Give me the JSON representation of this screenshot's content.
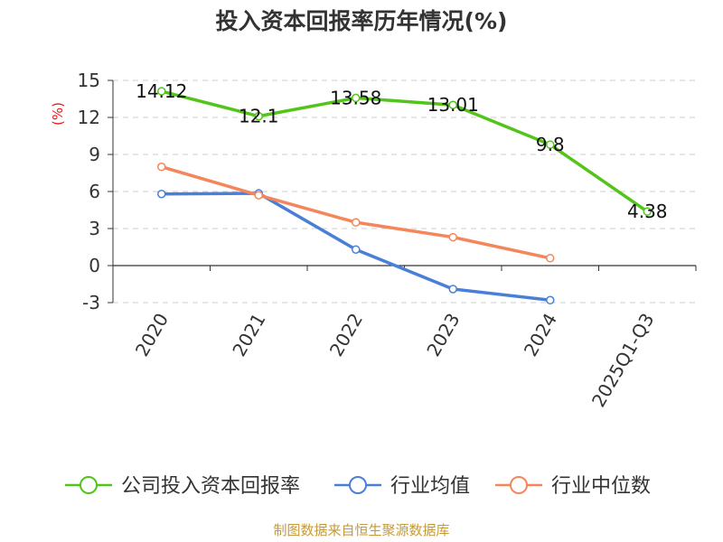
{
  "chart_data": {
    "type": "line",
    "title": "投入资本回报率历年情况(%)",
    "ylabel": "(%)",
    "xlabel": "",
    "categories": [
      "2020",
      "2021",
      "2022",
      "2023",
      "2024",
      "2025Q1-Q3"
    ],
    "ylim": [
      -3,
      15
    ],
    "yticks": [
      15,
      12,
      9,
      6,
      3,
      0,
      -3
    ],
    "grid": true,
    "legend_position": "bottom",
    "series": [
      {
        "name": "公司投入资本回报率",
        "color": "#52c41a",
        "values": [
          14.12,
          12.1,
          13.58,
          13.01,
          9.8,
          4.38
        ],
        "labels": [
          "14.12",
          "12.1",
          "13.58",
          "13.01",
          "9.8",
          "4.38"
        ]
      },
      {
        "name": "行业均值",
        "color": "#4a7fd8",
        "values": [
          5.8,
          5.85,
          1.3,
          -1.9,
          -2.8,
          null
        ]
      },
      {
        "name": "行业中位数",
        "color": "#f5855a",
        "values": [
          8.0,
          5.7,
          3.5,
          2.3,
          0.6,
          null
        ]
      }
    ],
    "source": "制图数据来自恒生聚源数据库"
  }
}
